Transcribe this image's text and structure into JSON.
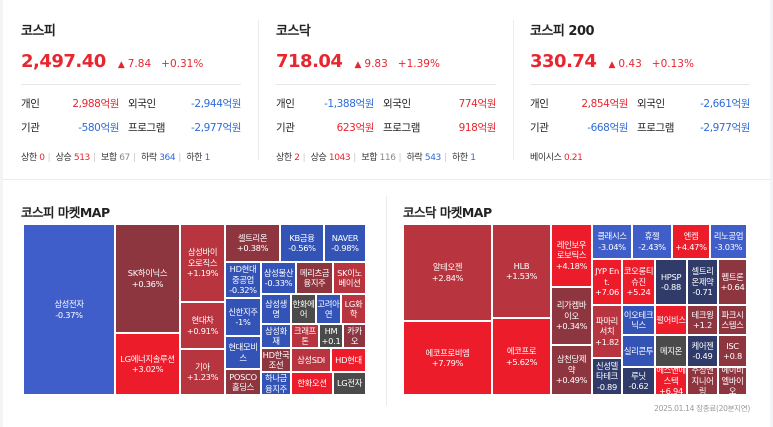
{
  "indices": [
    {
      "name": "코스피",
      "price": "2,497.40",
      "change": "7.84",
      "percent": "+0.31%",
      "investors": [
        {
          "label": "개인",
          "value": "2,988억원",
          "color": "red",
          "label2": "외국인",
          "value2": "-2,944억원",
          "color2": "blue"
        },
        {
          "label": "기관",
          "value": "-580억원",
          "color": "blue",
          "label2": "프로그램",
          "value2": "-2,977억원",
          "color2": "blue"
        }
      ],
      "stats": [
        {
          "label": "상한",
          "value": "0",
          "color": "red"
        },
        {
          "label": "상승",
          "value": "513",
          "color": "red"
        },
        {
          "label": "보합",
          "value": "67",
          "color": "gray"
        },
        {
          "label": "하락",
          "value": "364",
          "color": "blue"
        },
        {
          "label": "하한",
          "value": "1",
          "color": "blue"
        }
      ]
    },
    {
      "name": "코스닥",
      "price": "718.04",
      "change": "9.83",
      "percent": "+1.39%",
      "investors": [
        {
          "label": "개인",
          "value": "-1,388억원",
          "color": "blue",
          "label2": "외국인",
          "value2": "774억원",
          "color2": "red"
        },
        {
          "label": "기관",
          "value": "623억원",
          "color": "red",
          "label2": "프로그램",
          "value2": "918억원",
          "color2": "red"
        }
      ],
      "stats": [
        {
          "label": "상한",
          "value": "2",
          "color": "red"
        },
        {
          "label": "상승",
          "value": "1043",
          "color": "red"
        },
        {
          "label": "보합",
          "value": "116",
          "color": "gray"
        },
        {
          "label": "하락",
          "value": "543",
          "color": "blue"
        },
        {
          "label": "하한",
          "value": "1",
          "color": "blue"
        }
      ]
    },
    {
      "name": "코스피 200",
      "price": "330.74",
      "change": "0.43",
      "percent": "+0.13%",
      "investors": [
        {
          "label": "개인",
          "value": "2,854억원",
          "color": "red",
          "label2": "외국인",
          "value2": "-2,661억원",
          "color2": "blue"
        },
        {
          "label": "기관",
          "value": "-668억원",
          "color": "blue",
          "label2": "프로그램",
          "value2": "-2,977억원",
          "color2": "blue"
        }
      ],
      "stats": [
        {
          "label": "베이시스",
          "value": "0.21",
          "color": "red"
        }
      ]
    }
  ],
  "colors": {
    "strong_up": "#ec1c2b",
    "up": "#b8343f",
    "weak_up": "#8e3640",
    "flat": "#4a4a4a",
    "weak_down": "#303b6a",
    "down": "#3353b6",
    "strong_down": "#3f5ec9"
  },
  "kospi_map": {
    "title": "코스피 마켓MAP",
    "tiles": [
      {
        "name": "삼성전자",
        "change": "-0.37%",
        "color": "strong_down"
      },
      {
        "name": "SK하이닉스",
        "change": "+0.36%",
        "color": "weak_up"
      },
      {
        "name": "LG에너지솔루션",
        "change": "+3.02%",
        "color": "strong_up"
      },
      {
        "name": "삼성바이오로직스",
        "change": "+1.19%",
        "color": "up"
      },
      {
        "name": "현대차",
        "change": "+0.91%",
        "color": "up"
      },
      {
        "name": "기아",
        "change": "+1.23%",
        "color": "up"
      },
      {
        "name": "셀트리온",
        "change": "+0.38%",
        "color": "weak_up"
      },
      {
        "name": "KB금융",
        "change": "-0.56%",
        "color": "down"
      },
      {
        "name": "NAVER",
        "change": "-0.98%",
        "color": "down"
      },
      {
        "name": "HD현대중공업",
        "change": "-0.32%",
        "color": "down"
      },
      {
        "name": "삼성물산",
        "change": "-0.33%",
        "color": "down"
      },
      {
        "name": "메리츠금융지주",
        "change": "",
        "color": "weak_up"
      },
      {
        "name": "SK이노베이션",
        "change": "",
        "color": "up"
      },
      {
        "name": "신한지주",
        "change": "-1%",
        "color": "down"
      },
      {
        "name": "삼성생명",
        "change": "",
        "color": "down"
      },
      {
        "name": "한화에어",
        "change": "",
        "color": "flat"
      },
      {
        "name": "고려아연",
        "change": "",
        "color": "down"
      },
      {
        "name": "LG화학",
        "change": "",
        "color": "up"
      },
      {
        "name": "현대모비스",
        "change": "",
        "color": "down"
      },
      {
        "name": "삼성화재",
        "change": "",
        "color": "down"
      },
      {
        "name": "크래프톤",
        "change": "",
        "color": "up"
      },
      {
        "name": "HM",
        "change": "+0.1",
        "color": "flat"
      },
      {
        "name": "카카오",
        "change": "",
        "color": "weak_up"
      },
      {
        "name": "HD한국조선",
        "change": "",
        "color": "weak_up"
      },
      {
        "name": "삼성SDI",
        "change": "",
        "color": "up"
      },
      {
        "name": "HD현대",
        "change": "",
        "color": "strong_up"
      },
      {
        "name": "POSCO홀딩스",
        "change": "",
        "color": "weak_up"
      },
      {
        "name": "하나금융지주",
        "change": "",
        "color": "down"
      },
      {
        "name": "한화오션",
        "change": "",
        "color": "strong_up"
      },
      {
        "name": "LG전자",
        "change": "",
        "color": "flat"
      }
    ]
  },
  "kosdaq_map": {
    "title": "코스닥 마켓MAP",
    "tiles": [
      {
        "name": "알테오젠",
        "change": "+2.84%",
        "color": "up"
      },
      {
        "name": "에코프로비엠",
        "change": "+7.79%",
        "color": "strong_up"
      },
      {
        "name": "HLB",
        "change": "+1.53%",
        "color": "up"
      },
      {
        "name": "에코프로",
        "change": "+5.62%",
        "color": "strong_up"
      },
      {
        "name": "레인보우로보틱스",
        "change": "+4.18%",
        "color": "strong_up"
      },
      {
        "name": "리가켐바이오",
        "change": "+0.34%",
        "color": "weak_up"
      },
      {
        "name": "삼천당제약",
        "change": "+0.49%",
        "color": "weak_up"
      },
      {
        "name": "클래시스",
        "change": "-3.04%",
        "color": "strong_down"
      },
      {
        "name": "휴젤",
        "change": "-2.43%",
        "color": "strong_down"
      },
      {
        "name": "엔켐",
        "change": "+4.47%",
        "color": "strong_up"
      },
      {
        "name": "리노공업",
        "change": "-3.03%",
        "color": "strong_down"
      },
      {
        "name": "JYP Ent.",
        "change": "+7.06",
        "color": "strong_up"
      },
      {
        "name": "코오롱티슈진",
        "change": "+5.24",
        "color": "strong_up"
      },
      {
        "name": "HPSP",
        "change": "-0.88",
        "color": "weak_down"
      },
      {
        "name": "셀트리온제약",
        "change": "-0.71",
        "color": "weak_down"
      },
      {
        "name": "펩트론",
        "change": "+0.64",
        "color": "weak_up"
      },
      {
        "name": "파마리서치",
        "change": "+1.82",
        "color": "up"
      },
      {
        "name": "이오테크닉스",
        "change": "",
        "color": "down"
      },
      {
        "name": "펄어비스",
        "change": "",
        "color": "strong_up"
      },
      {
        "name": "테크윙",
        "change": "+1.2",
        "color": "weak_up"
      },
      {
        "name": "파크시스템스",
        "change": "",
        "color": "weak_up"
      },
      {
        "name": "신성델타테크",
        "change": "-0.89",
        "color": "weak_down"
      },
      {
        "name": "실리콘투",
        "change": "",
        "color": "down"
      },
      {
        "name": "메지온",
        "change": "",
        "color": "flat"
      },
      {
        "name": "케어젠",
        "change": "-0.49",
        "color": "weak_down"
      },
      {
        "name": "ISC",
        "change": "+0.8",
        "color": "weak_up"
      },
      {
        "name": "루닛",
        "change": "-0.62",
        "color": "weak_down"
      },
      {
        "name": "에스앤에스텍",
        "change": "+6.94",
        "color": "strong_up"
      },
      {
        "name": "주성엔지니어링",
        "change": "",
        "color": "weak_up"
      },
      {
        "name": "에이비엘바이오",
        "change": "",
        "color": "weak_up"
      }
    ]
  },
  "footnote": "2025.01.14 장종료(20분지연)"
}
